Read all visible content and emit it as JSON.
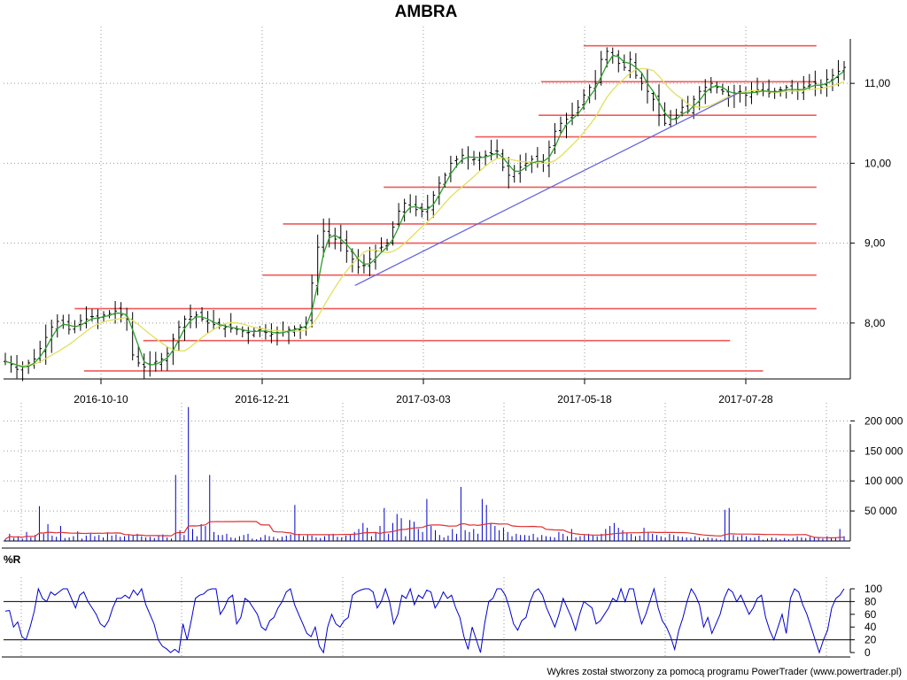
{
  "chart_data": [
    {
      "type": "ohlc",
      "title": "AMBRA",
      "x_ticks": [
        "2016-10-10",
        "2016-12-21",
        "2017-03-03",
        "2017-05-18",
        "2017-07-28"
      ],
      "y_ticks": [
        "8,00",
        "9,00",
        "10,00",
        "11,00"
      ],
      "ylim": [
        7.3,
        11.6
      ],
      "grid": true,
      "close": [
        7.52,
        7.48,
        7.42,
        7.45,
        7.5,
        7.55,
        7.68,
        7.82,
        7.95,
        8.02,
        7.98,
        7.92,
        7.96,
        8.03,
        8.05,
        8.08,
        8.06,
        8.1,
        8.12,
        8.15,
        8.1,
        8.05,
        7.6,
        7.5,
        7.45,
        7.48,
        7.52,
        7.55,
        7.62,
        7.8,
        7.95,
        8.05,
        8.08,
        8.1,
        8.05,
        8.0,
        7.98,
        7.96,
        7.95,
        7.93,
        7.92,
        7.9,
        7.88,
        7.9,
        7.92,
        7.88,
        7.86,
        7.88,
        7.9,
        7.92,
        7.93,
        7.95,
        8.0,
        8.5,
        8.95,
        9.15,
        9.1,
        9.05,
        9.0,
        8.9,
        8.8,
        8.7,
        8.72,
        8.8,
        8.9,
        8.95,
        9.0,
        9.2,
        9.4,
        9.5,
        9.45,
        9.42,
        9.4,
        9.45,
        9.6,
        9.75,
        9.85,
        10.0,
        10.05,
        10.1,
        10.08,
        10.05,
        10.08,
        10.1,
        10.12,
        10.15,
        9.95,
        9.85,
        9.9,
        9.95,
        10.0,
        10.05,
        10.02,
        10.0,
        10.2,
        10.4,
        10.5,
        10.55,
        10.6,
        10.7,
        10.85,
        10.95,
        11.0,
        11.3,
        11.4,
        11.35,
        11.25,
        11.2,
        11.3,
        11.1,
        11.0,
        10.9,
        10.8,
        10.6,
        10.5,
        10.55,
        10.6,
        10.7,
        10.65,
        10.8,
        10.9,
        10.95,
        11.0,
        10.95,
        10.9,
        10.85,
        10.88,
        10.9,
        10.85,
        10.9,
        10.92,
        10.9,
        10.88,
        10.9,
        10.92,
        10.95,
        10.9,
        10.92,
        10.95,
        10.98,
        11.0,
        10.95,
        11.05,
        11.1,
        11.15,
        11.2
      ],
      "sma_short": "3-day moving average of close (green line)",
      "sma_long": "10-day moving average of close (yellow line)",
      "horizontal_levels": [
        {
          "y": 11.47,
          "x_from": 0.685,
          "x_to": 0.96
        },
        {
          "y": 11.02,
          "x_from": 0.635,
          "x_to": 0.96
        },
        {
          "y": 10.6,
          "x_from": 0.632,
          "x_to": 0.96
        },
        {
          "y": 10.33,
          "x_from": 0.557,
          "x_to": 0.96
        },
        {
          "y": 9.7,
          "x_from": 0.449,
          "x_to": 0.96
        },
        {
          "y": 9.24,
          "x_from": 0.33,
          "x_to": 0.96
        },
        {
          "y": 9.0,
          "x_from": 0.383,
          "x_to": 0.96
        },
        {
          "y": 8.6,
          "x_from": 0.306,
          "x_to": 0.96
        },
        {
          "y": 8.18,
          "x_from": 0.084,
          "x_to": 0.96
        },
        {
          "y": 7.78,
          "x_from": 0.165,
          "x_to": 0.858
        },
        {
          "y": 7.4,
          "x_from": 0.095,
          "x_to": 0.897
        }
      ],
      "trend_line": {
        "from": [
          0.415,
          8.47
        ],
        "to": [
          0.868,
          10.88
        ]
      }
    },
    {
      "type": "bar",
      "title": "",
      "y_ticks": [
        "50 000",
        "100 000",
        "150 000",
        "200 000"
      ],
      "ylim": [
        0,
        230000
      ],
      "values": [
        3000,
        12000,
        5000,
        8000,
        4000,
        15000,
        6000,
        10000,
        58000,
        12000,
        28000,
        9000,
        7000,
        25000,
        5000,
        6000,
        8000,
        16000,
        4000,
        9000,
        12000,
        8000,
        10000,
        6000,
        14000,
        9000,
        11000,
        7000,
        8000,
        10000,
        9000,
        12000,
        8000,
        6000,
        7000,
        5000,
        9000,
        11000,
        6000,
        4000,
        110000,
        18000,
        10000,
        223000,
        20000,
        8000,
        28000,
        25000,
        110000,
        15000,
        10000,
        10000,
        12000,
        6000,
        5000,
        8000,
        10000,
        12000,
        4000,
        3000,
        6000,
        10000,
        8000,
        7000,
        4000,
        7000,
        9000,
        11000,
        60000,
        12000,
        8000,
        10000,
        9000,
        6000,
        5000,
        8000,
        10000,
        12000,
        7000,
        6000,
        9000,
        10000,
        15000,
        20000,
        30000,
        22000,
        8000,
        15000,
        25000,
        55000,
        12000,
        30000,
        45000,
        38000,
        8000,
        35000,
        32000,
        20000,
        15000,
        70000,
        25000,
        18000,
        10000,
        6000,
        9000,
        20000,
        12000,
        90000,
        18000,
        15000,
        20000,
        12000,
        70000,
        60000,
        30000,
        25000,
        18000,
        22000,
        15000,
        8000,
        12000,
        10000,
        10000,
        9000,
        12000,
        6000,
        10000,
        8000,
        7000,
        6000,
        15000,
        12000,
        8000,
        20000,
        6000,
        8000,
        10000,
        12000,
        9000,
        8000,
        12000,
        20000,
        25000,
        30000,
        22000,
        18000,
        14000,
        12000,
        8000,
        9000,
        22000,
        15000,
        12000,
        10000,
        8000,
        6000,
        12000,
        10000,
        8000,
        7000,
        6000,
        5000,
        8000,
        6000,
        4000,
        6000,
        5000,
        4000,
        2000,
        52000,
        55000,
        10000,
        7000,
        10000,
        8000,
        5000,
        6000,
        9000,
        2000,
        4000,
        6000,
        5000,
        3000,
        5000,
        3000,
        5000,
        8000,
        6000,
        5000,
        7000,
        6000,
        5000,
        4000,
        8000,
        5000,
        6000,
        20000,
        8000
      ],
      "average_line": "20-day moving average of volume (red line)"
    },
    {
      "type": "line",
      "title": "%R",
      "y_ticks": [
        "0",
        "20",
        "40",
        "60",
        "80",
        "100"
      ],
      "ylim": [
        0,
        100
      ],
      "reference_lines": [
        20,
        80
      ],
      "values": [
        65,
        66,
        40,
        48,
        25,
        20,
        40,
        65,
        100,
        85,
        80,
        95,
        90,
        95,
        100,
        100,
        85,
        70,
        90,
        95,
        80,
        70,
        60,
        45,
        40,
        50,
        70,
        85,
        85,
        90,
        85,
        98,
        90,
        100,
        75,
        60,
        45,
        20,
        10,
        6,
        0,
        5,
        0,
        45,
        20,
        50,
        85,
        90,
        92,
        98,
        100,
        100,
        60,
        70,
        85,
        90,
        45,
        55,
        85,
        80,
        70,
        60,
        40,
        35,
        50,
        55,
        70,
        80,
        95,
        100,
        75,
        60,
        45,
        30,
        25,
        40,
        10,
        0,
        40,
        60,
        45,
        40,
        50,
        55,
        90,
        95,
        98,
        100,
        100,
        95,
        70,
        80,
        100,
        80,
        45,
        60,
        90,
        85,
        100,
        75,
        90,
        85,
        98,
        95,
        70,
        80,
        95,
        85,
        90,
        70,
        55,
        25,
        5,
        40,
        20,
        0,
        45,
        80,
        85,
        100,
        100,
        90,
        70,
        45,
        35,
        50,
        55,
        80,
        95,
        100,
        90,
        70,
        55,
        40,
        60,
        85,
        70,
        55,
        35,
        60,
        80,
        75,
        70,
        45,
        50,
        60,
        70,
        85,
        80,
        100,
        80,
        100,
        100,
        70,
        45,
        60,
        80,
        100,
        70,
        50,
        40,
        25,
        5,
        35,
        55,
        80,
        100,
        90,
        75,
        40,
        55,
        30,
        45,
        60,
        85,
        100,
        95,
        80,
        90,
        75,
        60,
        70,
        85,
        90,
        55,
        35,
        20,
        40,
        60,
        30,
        85,
        100,
        95,
        75,
        60,
        40,
        20,
        0,
        20,
        35,
        70,
        85,
        90,
        100
      ]
    }
  ],
  "footer": "Wykres został stworzony za pomocą programu PowerTrader (www.powertrader.pl)",
  "colors": {
    "ohlc_bar": "#000000",
    "sma_short": "#2e9e2e",
    "sma_long": "#e0e060",
    "level": "#f05a5a",
    "trend": "#6060e0",
    "volume": "#0000c8",
    "volume_avg": "#e03030",
    "wr": "#0000cc",
    "grid": "#9a9a9a"
  }
}
